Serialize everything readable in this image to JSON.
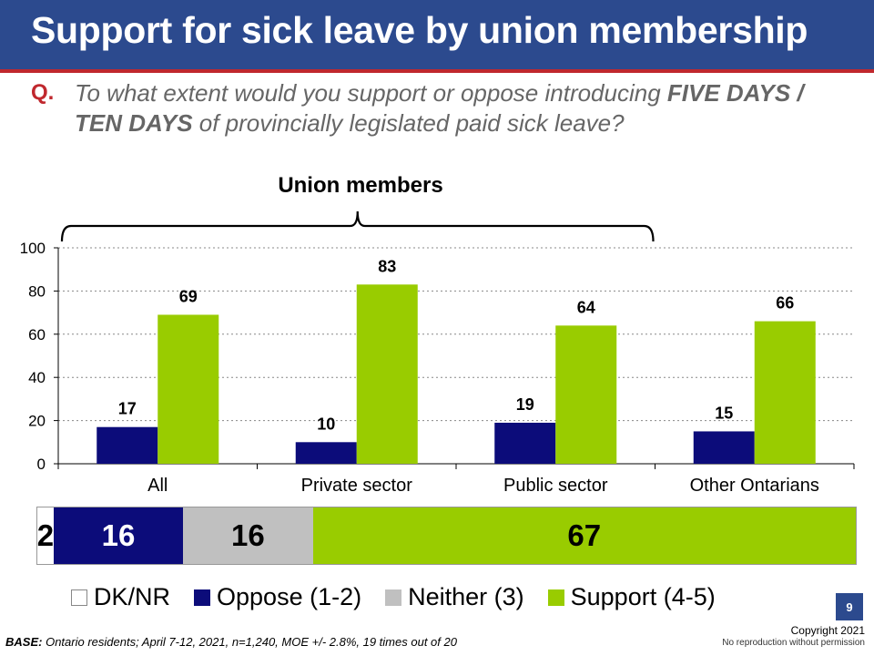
{
  "title": "Support for sick leave by union membership",
  "question": {
    "prefix": "Q.",
    "part1": "To what extent would you support or oppose introducing",
    "emphasis": "FIVE DAYS / TEN DAYS",
    "part2": "of provincially legislated paid sick leave?"
  },
  "union_label": "Union members",
  "colors": {
    "oppose": "#0c0c7a",
    "support": "#99cc00",
    "neither": "#c0c0c0",
    "dk": "#ffffff",
    "title_bar": "#2c4a8e",
    "accent": "#c0282e"
  },
  "chart_data": {
    "type": "bar",
    "categories": [
      "All",
      "Private sector",
      "Public sector",
      "Other Ontarians"
    ],
    "series": [
      {
        "name": "Oppose (1-2)",
        "values": [
          17,
          10,
          19,
          15
        ]
      },
      {
        "name": "Support (4-5)",
        "values": [
          69,
          83,
          64,
          66
        ]
      }
    ],
    "ylim": [
      0,
      100
    ],
    "yticks": [
      0,
      20,
      40,
      60,
      80,
      100
    ],
    "grid": true,
    "bracket_span": [
      "All",
      "Public sector"
    ]
  },
  "stacked_bar": [
    {
      "label": "DK/NR",
      "value": 2,
      "display": "2"
    },
    {
      "label": "Oppose (1-2)",
      "value": 16,
      "display": "16"
    },
    {
      "label": "Neither (3)",
      "value": 16,
      "display": "16"
    },
    {
      "label": "Support (4-5)",
      "value": 67,
      "display": "67"
    }
  ],
  "legend": [
    {
      "label": "DK/NR"
    },
    {
      "label": "Oppose (1-2)"
    },
    {
      "label": "Neither (3)"
    },
    {
      "label": "Support (4-5)"
    }
  ],
  "page_number": "9",
  "footer": {
    "base_label": "BASE:",
    "base_text": "Ontario residents; April 7-12, 2021, n=1,240, MOE +/- 2.8%, 19 times out of 20",
    "copyright": "Copyright 2021",
    "no_reproduction": "No reproduction without permission"
  }
}
